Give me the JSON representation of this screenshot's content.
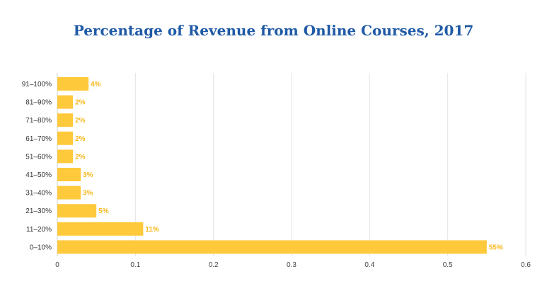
{
  "chart_data": {
    "type": "bar",
    "orientation": "horizontal",
    "title": "Percentage of Revenue from Online Courses, 2017",
    "categories": [
      "91–100%",
      "81–90%",
      "71–80%",
      "61–70%",
      "51–60%",
      "41–50%",
      "31–40%",
      "21–30%",
      "11–20%",
      "0–10%"
    ],
    "values": [
      0.04,
      0.02,
      0.02,
      0.02,
      0.02,
      0.03,
      0.03,
      0.05,
      0.11,
      0.55
    ],
    "data_labels": [
      "4%",
      "2%",
      "2%",
      "2%",
      "2%",
      "3%",
      "3%",
      "5%",
      "11%",
      "55%"
    ],
    "x_ticks": [
      "0",
      "0.1",
      "0.2",
      "0.3",
      "0.4",
      "0.5",
      "0.6"
    ],
    "xlim": [
      0,
      0.6
    ],
    "xlabel": "",
    "ylabel": "",
    "grid": "vertical",
    "bar_color": "#ffc93c",
    "label_color": "#f6b91c",
    "title_color": "#1f5aa6"
  }
}
